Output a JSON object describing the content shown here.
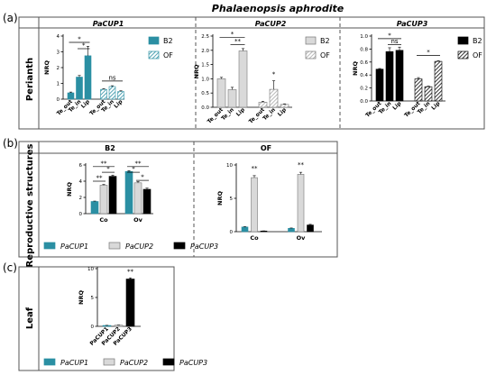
{
  "figure_title": "Phalaenopsis aphrodite",
  "panels": [
    {
      "letter": "(a)",
      "row_label": "Perianth"
    },
    {
      "letter": "(b)",
      "row_label": "Reproductive structures"
    },
    {
      "letter": "(c)",
      "row_label": "Leaf"
    }
  ],
  "colors": {
    "teal": "#2b8fa3",
    "grey": "#d9d9d9",
    "black": "#000000"
  },
  "chart_data": [
    {
      "type": "bar",
      "title": "PaCUP1",
      "ylabel": "NRQ",
      "ylim": [
        0,
        4
      ],
      "yticks": [
        "0",
        "1",
        "2",
        "3",
        "4"
      ],
      "categories": [
        "Te_out",
        "Te_in",
        "Lip"
      ],
      "series": [
        {
          "name": "B2",
          "color": "#2b8fa3",
          "pattern": "solid",
          "values": [
            0.4,
            1.4,
            2.75
          ],
          "errors": [
            0.05,
            0.1,
            0.6
          ]
        },
        {
          "name": "OF",
          "color": "#2b8fa3",
          "pattern": "hatch",
          "values": [
            0.62,
            0.8,
            0.48
          ],
          "errors": [
            0.05,
            0.05,
            0.05
          ]
        }
      ],
      "annotations": [
        {
          "text": "*",
          "from": 0,
          "to": 2,
          "level": 3.6
        },
        {
          "text": "*",
          "from": 1,
          "to": 2,
          "level": 3.2
        },
        {
          "text": "ns",
          "from": 3,
          "to": 5,
          "level": 1.15
        }
      ]
    },
    {
      "type": "bar",
      "title": "PaCUP2",
      "ylabel": "NRQ",
      "ylim": [
        0,
        2.5
      ],
      "yticks": [
        "0.0",
        "0.5",
        "1.0",
        "1.5",
        "2.0",
        "2.5"
      ],
      "categories": [
        "Te_out",
        "Te_in",
        "Lip"
      ],
      "series": [
        {
          "name": "B2",
          "color": "#d9d9d9",
          "pattern": "solid",
          "values": [
            1.0,
            0.62,
            1.98
          ],
          "errors": [
            0.05,
            0.08,
            0.08
          ]
        },
        {
          "name": "OF",
          "color": "#d9d9d9",
          "pattern": "hatch",
          "values": [
            0.18,
            0.63,
            0.1
          ],
          "errors": [
            0.03,
            0.3,
            0.02
          ]
        }
      ],
      "annotations": [
        {
          "text": "*",
          "from": 0,
          "to": 2,
          "level": 2.45
        },
        {
          "text": "**",
          "from": 1,
          "to": 2,
          "level": 2.2
        },
        {
          "text": "*",
          "from": 4,
          "to": 4,
          "level": 1.05
        }
      ]
    },
    {
      "type": "bar",
      "title": "PaCUP3",
      "ylabel": "NRQ",
      "ylim": [
        0,
        1.0
      ],
      "yticks": [
        "0.0",
        "0.2",
        "0.4",
        "0.6",
        "0.8",
        "1.0"
      ],
      "categories": [
        "Te_out",
        "Te_in",
        "Lip"
      ],
      "series": [
        {
          "name": "B2",
          "color": "#000000",
          "pattern": "solid",
          "values": [
            0.49,
            0.76,
            0.78
          ],
          "errors": [
            0.01,
            0.06,
            0.05
          ]
        },
        {
          "name": "OF",
          "color": "#000000",
          "pattern": "hatch",
          "values": [
            0.34,
            0.22,
            0.61
          ],
          "errors": [
            0.02,
            0.01,
            0.01
          ]
        }
      ],
      "annotations": [
        {
          "text": "*",
          "from": 0,
          "to": 2,
          "level": 0.96
        },
        {
          "text": "ns",
          "from": 1,
          "to": 2,
          "level": 0.87
        },
        {
          "text": "*",
          "from": 3,
          "to": 5,
          "level": 0.7
        }
      ]
    },
    {
      "type": "bar",
      "title": "B2",
      "ylabel": "NRQ",
      "ylim": [
        0,
        6
      ],
      "yticks": [
        "0",
        "2",
        "4",
        "6"
      ],
      "categories": [
        "Co",
        "Ov"
      ],
      "series": [
        {
          "name": "PaCUP1",
          "color": "#2b8fa3",
          "values": [
            1.5,
            5.2
          ],
          "errors": [
            0.05,
            0.1
          ]
        },
        {
          "name": "PaCUP2",
          "color": "#d9d9d9",
          "values": [
            3.5,
            3.8
          ],
          "errors": [
            0.1,
            0.15
          ]
        },
        {
          "name": "PaCUP3",
          "color": "#000000",
          "values": [
            4.6,
            3.0
          ],
          "errors": [
            0.15,
            0.15
          ]
        }
      ],
      "annotations": [
        {
          "text": "**",
          "from": 0,
          "to": 2,
          "level": 5.8
        },
        {
          "text": "*",
          "from": 1,
          "to": 2,
          "level": 5.1
        },
        {
          "text": "**",
          "from": 0,
          "to": 1,
          "level": 4.0
        },
        {
          "text": "**",
          "from": 3,
          "to": 5,
          "level": 5.8
        },
        {
          "text": "*",
          "from": 3,
          "to": 4,
          "level": 5.1
        },
        {
          "text": "*",
          "from": 4,
          "to": 5,
          "level": 4.1
        }
      ]
    },
    {
      "type": "bar",
      "title": "OF",
      "ylabel": "NRQ",
      "ylim": [
        0,
        10
      ],
      "yticks": [
        "0",
        "5",
        "10"
      ],
      "categories": [
        "Co",
        "Ov"
      ],
      "series": [
        {
          "name": "PaCUP1",
          "color": "#2b8fa3",
          "values": [
            0.7,
            0.5
          ],
          "errors": [
            0.05,
            0.05
          ]
        },
        {
          "name": "PaCUP2",
          "color": "#d9d9d9",
          "values": [
            8.1,
            8.6
          ],
          "errors": [
            0.3,
            0.3
          ]
        },
        {
          "name": "PaCUP3",
          "color": "#000000",
          "values": [
            0.1,
            1.0
          ],
          "errors": [
            0.02,
            0.1
          ]
        }
      ],
      "annotations": [
        {
          "text": "**",
          "from": 1,
          "to": 1,
          "level": 9.0
        },
        {
          "text": "**",
          "from": 4,
          "to": 4,
          "level": 9.5
        }
      ]
    },
    {
      "type": "bar",
      "title": "",
      "ylabel": "NRQ",
      "ylim": [
        0,
        10
      ],
      "yticks": [
        "0",
        "5",
        "10"
      ],
      "categories": [
        "PaCUP1",
        "PaCUP2",
        "PaCUP3"
      ],
      "series": [
        {
          "name": "Leaf",
          "colors": [
            "#2b8fa3",
            "#d9d9d9",
            "#000000"
          ],
          "values": [
            0.15,
            0.2,
            8.2
          ],
          "errors": [
            0.02,
            0.02,
            0.2
          ]
        }
      ],
      "annotations": [
        {
          "text": "**",
          "from": 2,
          "to": 2,
          "level": 8.9
        }
      ]
    }
  ],
  "legends": {
    "a1": [
      {
        "name": "B2",
        "color": "#2b8fa3",
        "pattern": "solid"
      },
      {
        "name": "OF",
        "color": "#2b8fa3",
        "pattern": "hatch"
      }
    ],
    "a2": [
      {
        "name": "B2",
        "color": "#d9d9d9",
        "pattern": "solid"
      },
      {
        "name": "OF",
        "color": "#d9d9d9",
        "pattern": "hatch"
      }
    ],
    "a3": [
      {
        "name": "B2",
        "color": "#000000",
        "pattern": "solid"
      },
      {
        "name": "OF",
        "color": "#000000",
        "pattern": "hatch"
      }
    ],
    "b": [
      {
        "name": "PaCUP1",
        "color": "#2b8fa3"
      },
      {
        "name": "PaCUP2",
        "color": "#d9d9d9"
      },
      {
        "name": "PaCUP3",
        "color": "#000000"
      }
    ],
    "c": [
      {
        "name": "PaCUP1",
        "color": "#2b8fa3"
      },
      {
        "name": "PaCUP2",
        "color": "#d9d9d9"
      },
      {
        "name": "PaCUP3",
        "color": "#000000"
      }
    ]
  }
}
